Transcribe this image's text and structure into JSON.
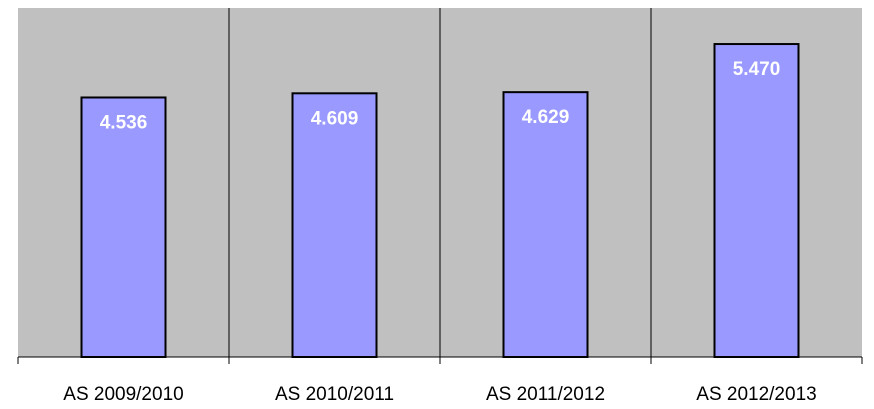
{
  "chart_data": {
    "type": "bar",
    "categories": [
      "AS 2009/2010",
      "AS 2010/2011",
      "AS 2011/2012",
      "AS 2012/2013"
    ],
    "values": [
      4.536,
      4.609,
      4.629,
      5.47
    ],
    "value_labels": [
      "4.536",
      "4.609",
      "4.629",
      "5.470"
    ],
    "title": "",
    "xlabel": "",
    "ylabel": "",
    "ylim": [
      0,
      6.1
    ],
    "grid": true,
    "legend": "none",
    "colors": {
      "plot_background": "#c0c0c0",
      "bar_fill": "#9999ff",
      "bar_stroke": "#000000",
      "label_text": "#ffffff"
    }
  }
}
